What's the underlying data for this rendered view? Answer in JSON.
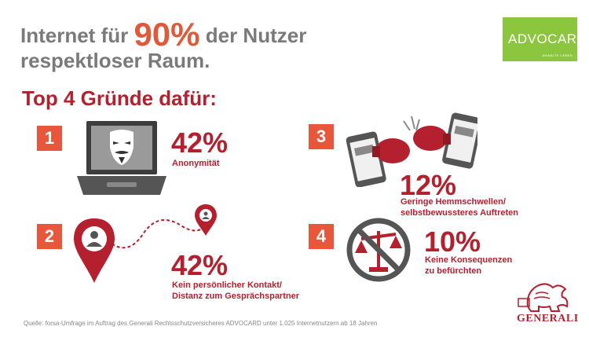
{
  "header": {
    "title_part1": "Internet für ",
    "title_highlight": "90%",
    "title_part2": " der Nutzer",
    "title_line2": "respektloser Raum.",
    "subtitle": "Top 4 Gründe dafür:"
  },
  "logo": {
    "name": "ADVOCARD",
    "tagline": "ANWÄLTE LIEBEN"
  },
  "reasons": [
    {
      "number": "1",
      "percent": "42%",
      "label_lines": [
        "Anonymität"
      ],
      "icon": "laptop-mask-icon"
    },
    {
      "number": "2",
      "percent": "42%",
      "label_lines": [
        "Kein persönlicher Kontakt/",
        "Distanz zum Gesprächspartner"
      ],
      "icon": "map-route-icon"
    },
    {
      "number": "3",
      "percent": "12%",
      "label_lines": [
        "Geringe Hemmschwellen/",
        "selbstbewussteres Auftreten"
      ],
      "icon": "phones-boxing-icon"
    },
    {
      "number": "4",
      "percent": "10%",
      "label_lines": [
        "Keine Konsequenzen",
        "zu befürchten"
      ],
      "icon": "no-justice-icon"
    }
  ],
  "source": "Quelle: forsa-Umfrage im Auftrag des Generali Rechtsschutzversicheres ADVOCARD unter 1.025 Internetnutzern ab 18 Jahren",
  "brand": "GENERALI",
  "colors": {
    "accent_red": "#b5202e",
    "number_orange": "#e8573c",
    "title_grey": "#7a7a7a",
    "logo_green": "#8cc63f"
  }
}
